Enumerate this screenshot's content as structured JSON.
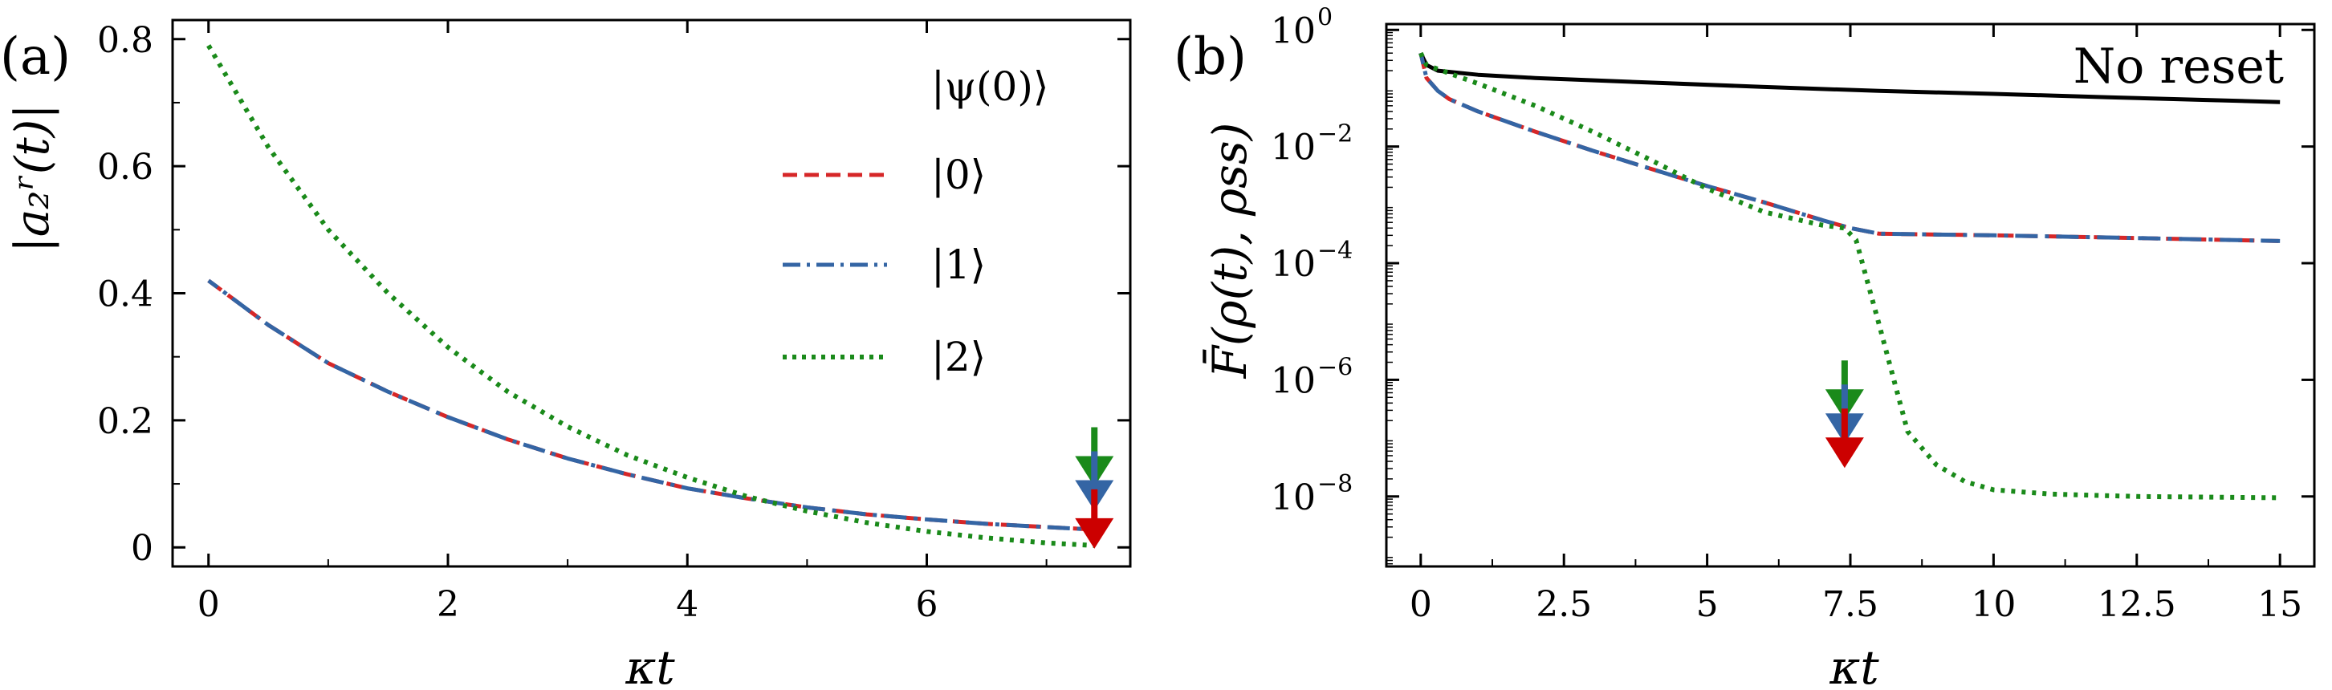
{
  "chart_data": [
    {
      "type": "line",
      "panel_label": "(a)",
      "xlabel": "κt",
      "ylabel": "|a₂ʳ(t)|",
      "xlim": [
        -0.3,
        7.7
      ],
      "ylim": [
        -0.03,
        0.83
      ],
      "x_ticks": [
        0,
        2,
        4,
        6
      ],
      "x_tick_labels": [
        "0",
        "2",
        "4",
        "6"
      ],
      "y_ticks": [
        0,
        0.2,
        0.4,
        0.6,
        0.8
      ],
      "y_tick_labels": [
        "0",
        "0.2",
        "0.4",
        "0.6",
        "0.8"
      ],
      "legend_title": "|ψ(0)⟩",
      "legend_position": "right",
      "grid": false,
      "series": [
        {
          "name": "|0⟩",
          "color": "#d62728",
          "dash": "dashed",
          "x": [
            0,
            0.5,
            1,
            1.5,
            2,
            2.5,
            3,
            3.5,
            4,
            4.5,
            5,
            5.5,
            6,
            6.5,
            7,
            7.4
          ],
          "y": [
            0.42,
            0.35,
            0.29,
            0.245,
            0.205,
            0.17,
            0.14,
            0.115,
            0.093,
            0.077,
            0.063,
            0.052,
            0.044,
            0.037,
            0.032,
            0.028
          ]
        },
        {
          "name": "|1⟩",
          "color": "#3465a4",
          "dash": "dashdot",
          "x": [
            0,
            0.5,
            1,
            1.5,
            2,
            2.5,
            3,
            3.5,
            4,
            4.5,
            5,
            5.5,
            6,
            6.5,
            7,
            7.4
          ],
          "y": [
            0.42,
            0.35,
            0.29,
            0.245,
            0.205,
            0.17,
            0.14,
            0.115,
            0.093,
            0.077,
            0.063,
            0.052,
            0.044,
            0.037,
            0.032,
            0.028
          ]
        },
        {
          "name": "|2⟩",
          "color": "#1a8a1a",
          "dash": "dotted",
          "x": [
            0,
            0.5,
            1,
            1.5,
            2,
            2.5,
            3,
            3.5,
            4,
            4.5,
            5,
            5.5,
            6,
            6.5,
            7,
            7.4
          ],
          "y": [
            0.79,
            0.63,
            0.5,
            0.4,
            0.315,
            0.245,
            0.19,
            0.145,
            0.11,
            0.08,
            0.057,
            0.039,
            0.025,
            0.015,
            0.007,
            0.003
          ]
        }
      ],
      "arrows": [
        {
          "x": 7.4,
          "y": 0.025,
          "color": "#1a8a1a"
        },
        {
          "x": 7.4,
          "y": 0.025,
          "color": "#3465a4"
        },
        {
          "x": 7.4,
          "y": 0.003,
          "color": "#cc0000"
        }
      ]
    },
    {
      "type": "line",
      "panel_label": "(b)",
      "xlabel": "κt",
      "ylabel": "F̄(ρ(t), ρss)",
      "yscale": "log",
      "xlim": [
        -0.6,
        15.6
      ],
      "ylim_log10": [
        -9.2,
        0.1
      ],
      "x_ticks": [
        0,
        2.5,
        5,
        7.5,
        10,
        12.5,
        15
      ],
      "x_tick_labels": [
        "0",
        "2.5",
        "5",
        "7.5",
        "10",
        "12.5",
        "15"
      ],
      "y_ticks_log10": [
        0,
        -2,
        -4,
        -6,
        -8
      ],
      "y_tick_base": "10",
      "y_tick_exponents": [
        "0",
        "−2",
        "−4",
        "−6",
        "−8"
      ],
      "annotation": "No reset",
      "grid": false,
      "series": [
        {
          "name": "No reset",
          "color": "#000000",
          "dash": "solid",
          "x": [
            0,
            0.1,
            0.3,
            1,
            2,
            4,
            6,
            8,
            10,
            12,
            15
          ],
          "y": [
            0.4,
            0.25,
            0.2,
            0.17,
            0.15,
            0.125,
            0.105,
            0.09,
            0.08,
            0.07,
            0.058
          ]
        },
        {
          "name": "|0⟩",
          "color": "#d62728",
          "dash": "dashed",
          "x": [
            0,
            0.1,
            0.3,
            0.5,
            1,
            2,
            3,
            4,
            5,
            6,
            7,
            7.5,
            8,
            10,
            12.5,
            15
          ],
          "y": [
            0.4,
            0.15,
            0.09,
            0.065,
            0.04,
            0.018,
            0.0085,
            0.0042,
            0.0021,
            0.0011,
            0.00055,
            0.0004,
            0.00032,
            0.0003,
            0.00027,
            0.00024
          ]
        },
        {
          "name": "|1⟩",
          "color": "#3465a4",
          "dash": "dashdot",
          "x": [
            0,
            0.1,
            0.3,
            0.5,
            1,
            2,
            3,
            4,
            5,
            6,
            7,
            7.5,
            8,
            10,
            12.5,
            15
          ],
          "y": [
            0.4,
            0.15,
            0.09,
            0.065,
            0.04,
            0.018,
            0.0085,
            0.0042,
            0.0021,
            0.0011,
            0.00055,
            0.0004,
            0.00032,
            0.0003,
            0.00027,
            0.00024
          ]
        },
        {
          "name": "|2⟩",
          "color": "#1a8a1a",
          "dash": "dotted",
          "x": [
            0,
            0.1,
            0.5,
            1,
            2,
            3,
            4,
            5,
            6,
            7,
            7.4,
            7.6,
            8,
            8.5,
            9,
            9.5,
            10,
            11,
            12.5,
            15
          ],
          "y": [
            0.4,
            0.25,
            0.18,
            0.12,
            0.05,
            0.018,
            0.006,
            0.0019,
            0.00075,
            0.00045,
            0.0004,
            0.00025,
            9e-06,
            1.3e-07,
            3.5e-08,
            1.8e-08,
            1.3e-08,
            1.1e-08,
            1e-08,
            9.5e-09
          ]
        }
      ],
      "arrows": [
        {
          "x": 7.4,
          "y": 3.5e-08,
          "color": "#1a8a1a"
        },
        {
          "x": 7.4,
          "y": 3.5e-08,
          "color": "#3465a4"
        },
        {
          "x": 7.4,
          "y": 3.5e-08,
          "color": "#cc0000"
        }
      ]
    }
  ]
}
